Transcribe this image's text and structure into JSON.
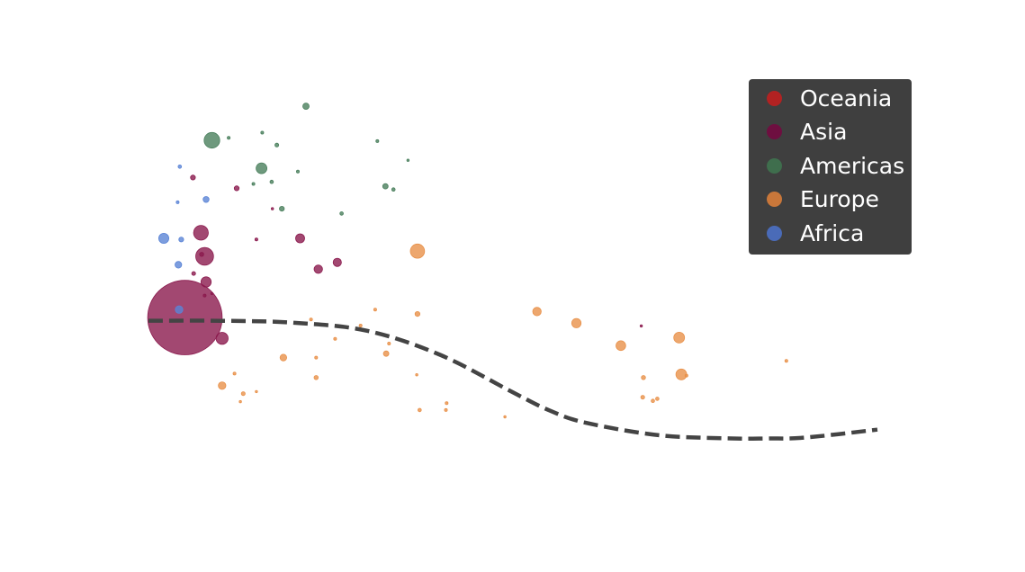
{
  "chart_data": {
    "type": "scatter",
    "title": "",
    "xlabel": "",
    "ylabel": "",
    "xlim": [
      0,
      100
    ],
    "ylim": [
      0,
      100
    ],
    "grid": false,
    "axes_visible": false,
    "legend_position": "top-right",
    "series": [
      {
        "name": "Oceania",
        "color": "#b22222",
        "x": [],
        "y": [],
        "size": []
      },
      {
        "name": "Asia",
        "color": "#8b1a4e",
        "x": [
          5.0,
          7.7,
          10.1,
          7.2,
          7.9,
          20.8,
          23.3,
          25.9,
          6.1,
          6.2,
          7.3,
          12.1,
          17.0,
          14.8,
          7.7,
          67.6,
          8.7
        ],
        "y": [
          58.0,
          42.7,
          63.2,
          36.8,
          49.1,
          38.2,
          45.9,
          44.2,
          23.0,
          47.0,
          42.2,
          25.7,
          30.8,
          38.5,
          52.5,
          60.1,
          52.0
        ],
        "size": [
          1900,
          110,
          50,
          75,
          36,
          28,
          25,
          24,
          8,
          5,
          6,
          8,
          2,
          3,
          3,
          2,
          2
        ]
      },
      {
        "name": "Americas",
        "color": "#4a7f5d",
        "x": [
          21.6,
          8.7,
          15.5,
          32.5,
          18.3,
          17.6,
          16.9,
          26.5,
          33.6,
          11.0,
          14.4,
          15.6,
          20.5,
          31.4,
          35.6
        ],
        "y": [
          5.2,
          13.7,
          20.7,
          25.2,
          30.8,
          14.9,
          24.1,
          32.0,
          26.0,
          13.1,
          24.6,
          11.8,
          21.5,
          13.9,
          18.7
        ],
        "size": [
          14,
          85,
          40,
          10,
          8,
          5,
          4,
          4,
          4,
          3,
          3,
          3,
          3,
          3,
          2
        ]
      },
      {
        "name": "Europe",
        "color": "#e8914a",
        "x": [
          36.9,
          53.3,
          58.7,
          64.8,
          72.8,
          73.1,
          32.6,
          18.5,
          10.1,
          13.0,
          36.9,
          22.3,
          23.0,
          67.8,
          67.9,
          69.2,
          69.8,
          73.8,
          37.2,
          40.8,
          25.6,
          33.0,
          23.0,
          11.8,
          12.6,
          36.8,
          40.9,
          48.9,
          87.5,
          31.1,
          29.1,
          14.8
        ],
        "y": [
          41.4,
          56.5,
          59.4,
          65.0,
          63.0,
          72.2,
          67.0,
          68.0,
          75.0,
          77.0,
          57.1,
          58.5,
          73.0,
          77.9,
          73.0,
          78.8,
          78.3,
          72.5,
          81.1,
          81.1,
          63.3,
          64.5,
          68.0,
          72.0,
          79.0,
          72.3,
          79.4,
          82.8,
          68.8,
          56.0,
          60.0,
          76.5
        ],
        "size": [
          70,
          25,
          30,
          32,
          40,
          40,
          10,
          15,
          20,
          5,
          8,
          3,
          6,
          5,
          6,
          4,
          4,
          3,
          4,
          3,
          3,
          3,
          3,
          3,
          2,
          2,
          3,
          2,
          3,
          3,
          3,
          2
        ]
      },
      {
        "name": "Africa",
        "color": "#5b84d6",
        "x": [
          2.1,
          4.1,
          4.5,
          4.3,
          4.0,
          7.9,
          4.2
        ],
        "y": [
          38.2,
          44.8,
          38.5,
          20.3,
          29.2,
          28.5,
          56.0
        ],
        "size": [
          35,
          15,
          8,
          4,
          3,
          12,
          20
        ]
      }
    ],
    "trend_line": {
      "style": "dashed",
      "color": "#444444",
      "x": [
        0,
        10,
        20,
        30,
        40,
        50,
        55,
        60,
        70,
        80,
        85,
        90,
        100
      ],
      "y": [
        58.8,
        58.8,
        59.3,
        61.3,
        67.3,
        76.7,
        81.2,
        84.3,
        87.4,
        88.2,
        88.2,
        88.0,
        86.0
      ]
    }
  }
}
